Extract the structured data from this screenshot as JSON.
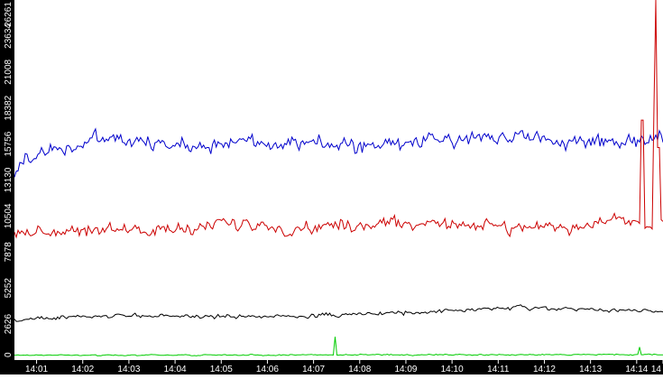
{
  "chart_data": {
    "type": "line",
    "title": "",
    "xlabel": "",
    "ylabel": "",
    "x_range_minutes": [
      0,
      14.05
    ],
    "x_ticks": [
      "14:01",
      "14:02",
      "14:03",
      "14:04",
      "14:05",
      "14:06",
      "14:07",
      "14:08",
      "14:09",
      "14:10",
      "14:11",
      "14:12",
      "14:13",
      "14:14",
      "14"
    ],
    "x_tick_minutes": [
      0.48,
      1.48,
      2.48,
      3.48,
      4.48,
      5.48,
      6.48,
      7.48,
      8.48,
      9.48,
      10.48,
      11.48,
      12.48,
      13.48,
      14.05
    ],
    "y_ticks": [
      "0",
      "2626",
      "5252",
      "7878",
      "10504",
      "13130",
      "15756",
      "18382",
      "21008",
      "23634",
      "26261"
    ],
    "y_tick_values": [
      0,
      2626,
      5252,
      7878,
      10504,
      13130,
      15756,
      18382,
      21008,
      23634,
      26261
    ],
    "ylim": [
      0,
      26261
    ],
    "grid": false,
    "legend": "none",
    "colors": {
      "background": "#ffffff",
      "axis_band": "#000000",
      "axis_text": "#ffffff"
    },
    "series": [
      {
        "color": "#0000cc",
        "mean": 15300,
        "noise": 780,
        "profile": [
          [
            0,
            13600
          ],
          [
            0.3,
            14900
          ],
          [
            1.0,
            15400
          ],
          [
            2.0,
            16200
          ],
          [
            3.0,
            15700
          ],
          [
            4.0,
            15700
          ],
          [
            5.0,
            15900
          ],
          [
            6.0,
            16000
          ],
          [
            7.0,
            15600
          ],
          [
            8.0,
            15600
          ],
          [
            9.0,
            16000
          ],
          [
            10.0,
            16300
          ],
          [
            11.0,
            16400
          ],
          [
            12.0,
            15800
          ],
          [
            13.0,
            15900
          ],
          [
            14.05,
            16200
          ]
        ]
      },
      {
        "color": "#cc0000",
        "mean": 9400,
        "noise": 620,
        "profile": [
          [
            0,
            9300
          ],
          [
            1.0,
            9400
          ],
          [
            2.0,
            9600
          ],
          [
            3.0,
            9400
          ],
          [
            4.0,
            9700
          ],
          [
            5.0,
            9900
          ],
          [
            6.0,
            9500
          ],
          [
            7.0,
            9900
          ],
          [
            8.0,
            9800
          ],
          [
            9.0,
            10100
          ],
          [
            10.0,
            9800
          ],
          [
            11.0,
            9700
          ],
          [
            12.0,
            9600
          ],
          [
            13.0,
            10200
          ],
          [
            14.05,
            10000
          ]
        ],
        "spikes": [
          [
            13.6,
            17500
          ],
          [
            13.85,
            18500
          ],
          [
            13.9,
            26261
          ],
          [
            13.95,
            15500
          ]
        ]
      },
      {
        "color": "#000000",
        "mean": 3100,
        "noise": 200,
        "profile": [
          [
            0,
            2900
          ],
          [
            1.0,
            3100
          ],
          [
            2.0,
            3200
          ],
          [
            3.0,
            3250
          ],
          [
            4.0,
            3200
          ],
          [
            5.0,
            3150
          ],
          [
            6.0,
            3200
          ],
          [
            7.0,
            3300
          ],
          [
            8.0,
            3400
          ],
          [
            9.0,
            3500
          ],
          [
            10.0,
            3700
          ],
          [
            11.0,
            3800
          ],
          [
            12.0,
            3700
          ],
          [
            13.0,
            3650
          ],
          [
            14.05,
            3500
          ]
        ]
      },
      {
        "color": "#00cc00",
        "mean": 400,
        "noise": 60,
        "profile": [
          [
            0,
            350
          ],
          [
            14.05,
            400
          ]
        ],
        "spikes": [
          [
            6.95,
            1700
          ],
          [
            13.55,
            950
          ]
        ]
      }
    ]
  }
}
